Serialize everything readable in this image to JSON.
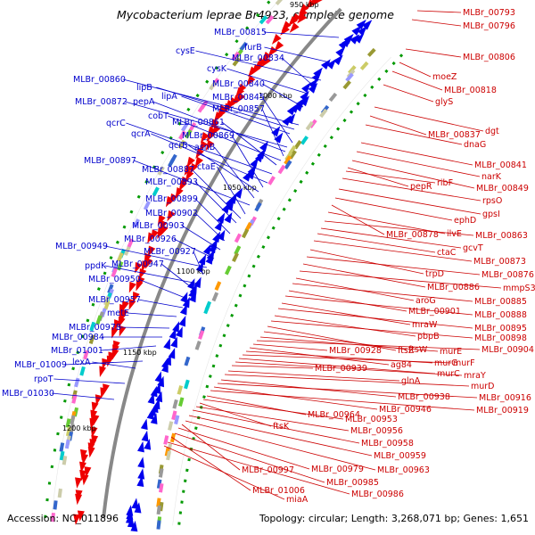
{
  "header": {
    "title": "Mycobacterium leprae Br4923, complete genome"
  },
  "footer": {
    "accession": "Accession: NC_011896",
    "summary": "Topology: circular; Length: 3,268,071 bp; Genes: 1,651"
  },
  "colors": {
    "backbone": "#888888",
    "forward_label": "#0000cc",
    "reverse_label": "#cc0000",
    "forward_feature": "#0000ee",
    "reverse_feature": "#ee0000"
  },
  "kbp_marks": [
    "950 kbp",
    "1000 kbp",
    "1050 kbp",
    "1100 kbp",
    "1150 kbp",
    "1200 kbp"
  ],
  "left_labels": [
    "MLBr_00815",
    "furB",
    "cysE",
    "MLBr_00834",
    "cysK",
    "MLBr_00860",
    "lipB",
    "lipA",
    "MLBr_00840",
    "MLBr_00872",
    "pepA",
    "MLBr_00845",
    "MLBr_00857",
    "cobT",
    "MLBr_00861",
    "qcrC",
    "qcrA",
    "MLBr_00869",
    "qcrB",
    "asnB",
    "MLBr_00897",
    "ctaE",
    "MLBr_00887",
    "MLBr_00893",
    "MLBr_00899",
    "MLBr_00902",
    "MLBr_00903",
    "MLBr_00926",
    "MLBr_00949",
    "MLBr_00927",
    "ppdK",
    "MLBr_00947",
    "MLBr_00950",
    "MLBr_00957",
    "metE",
    "MLBr_00978",
    "MLBr_00984",
    "MLBr_01001",
    "MLBr_01009",
    "lexA",
    "rpoT",
    "MLBr_01030"
  ],
  "right_labels": [
    "MLBr_00793",
    "MLBr_00796",
    "MLBr_00806",
    "moeZ",
    "MLBr_00818",
    "glyS",
    "dgt",
    "MLBr_00837",
    "dnaG",
    "MLBr_00841",
    "narK",
    "MLBr_00849",
    "pepR",
    "ribF",
    "rpsO",
    "gpsI",
    "ephD",
    "MLBr_00878",
    "ilvE",
    "MLBr_00863",
    "gcvT",
    "ctaC",
    "MLBr_00873",
    "trpD",
    "MLBr_00876",
    "MLBr_00886",
    "mmpS3",
    "aroG",
    "MLBr_00885",
    "MLBr_00901",
    "MLBr_00888",
    "mraW",
    "MLBr_00895",
    "pbpB",
    "MLBr_00898",
    "ftsZ",
    "ftsW",
    "murE",
    "MLBr_00904",
    "MLBr_00928",
    "ag84",
    "murG",
    "murF",
    "murC",
    "mraY",
    "MLBr_00939",
    "glnA",
    "murD",
    "MLBr_00938",
    "MLBr_00916",
    "MLBr_00946",
    "MLBr_00919",
    "MLBr_00964",
    "MLBr_00953",
    "ftsK",
    "MLBr_00956",
    "MLBr_00958",
    "MLBr_00959",
    "MLBr_00963",
    "MLBr_00997",
    "MLBr_00979",
    "MLBr_00985",
    "MLBr_01006",
    "MLBr_00986",
    "miaA"
  ]
}
